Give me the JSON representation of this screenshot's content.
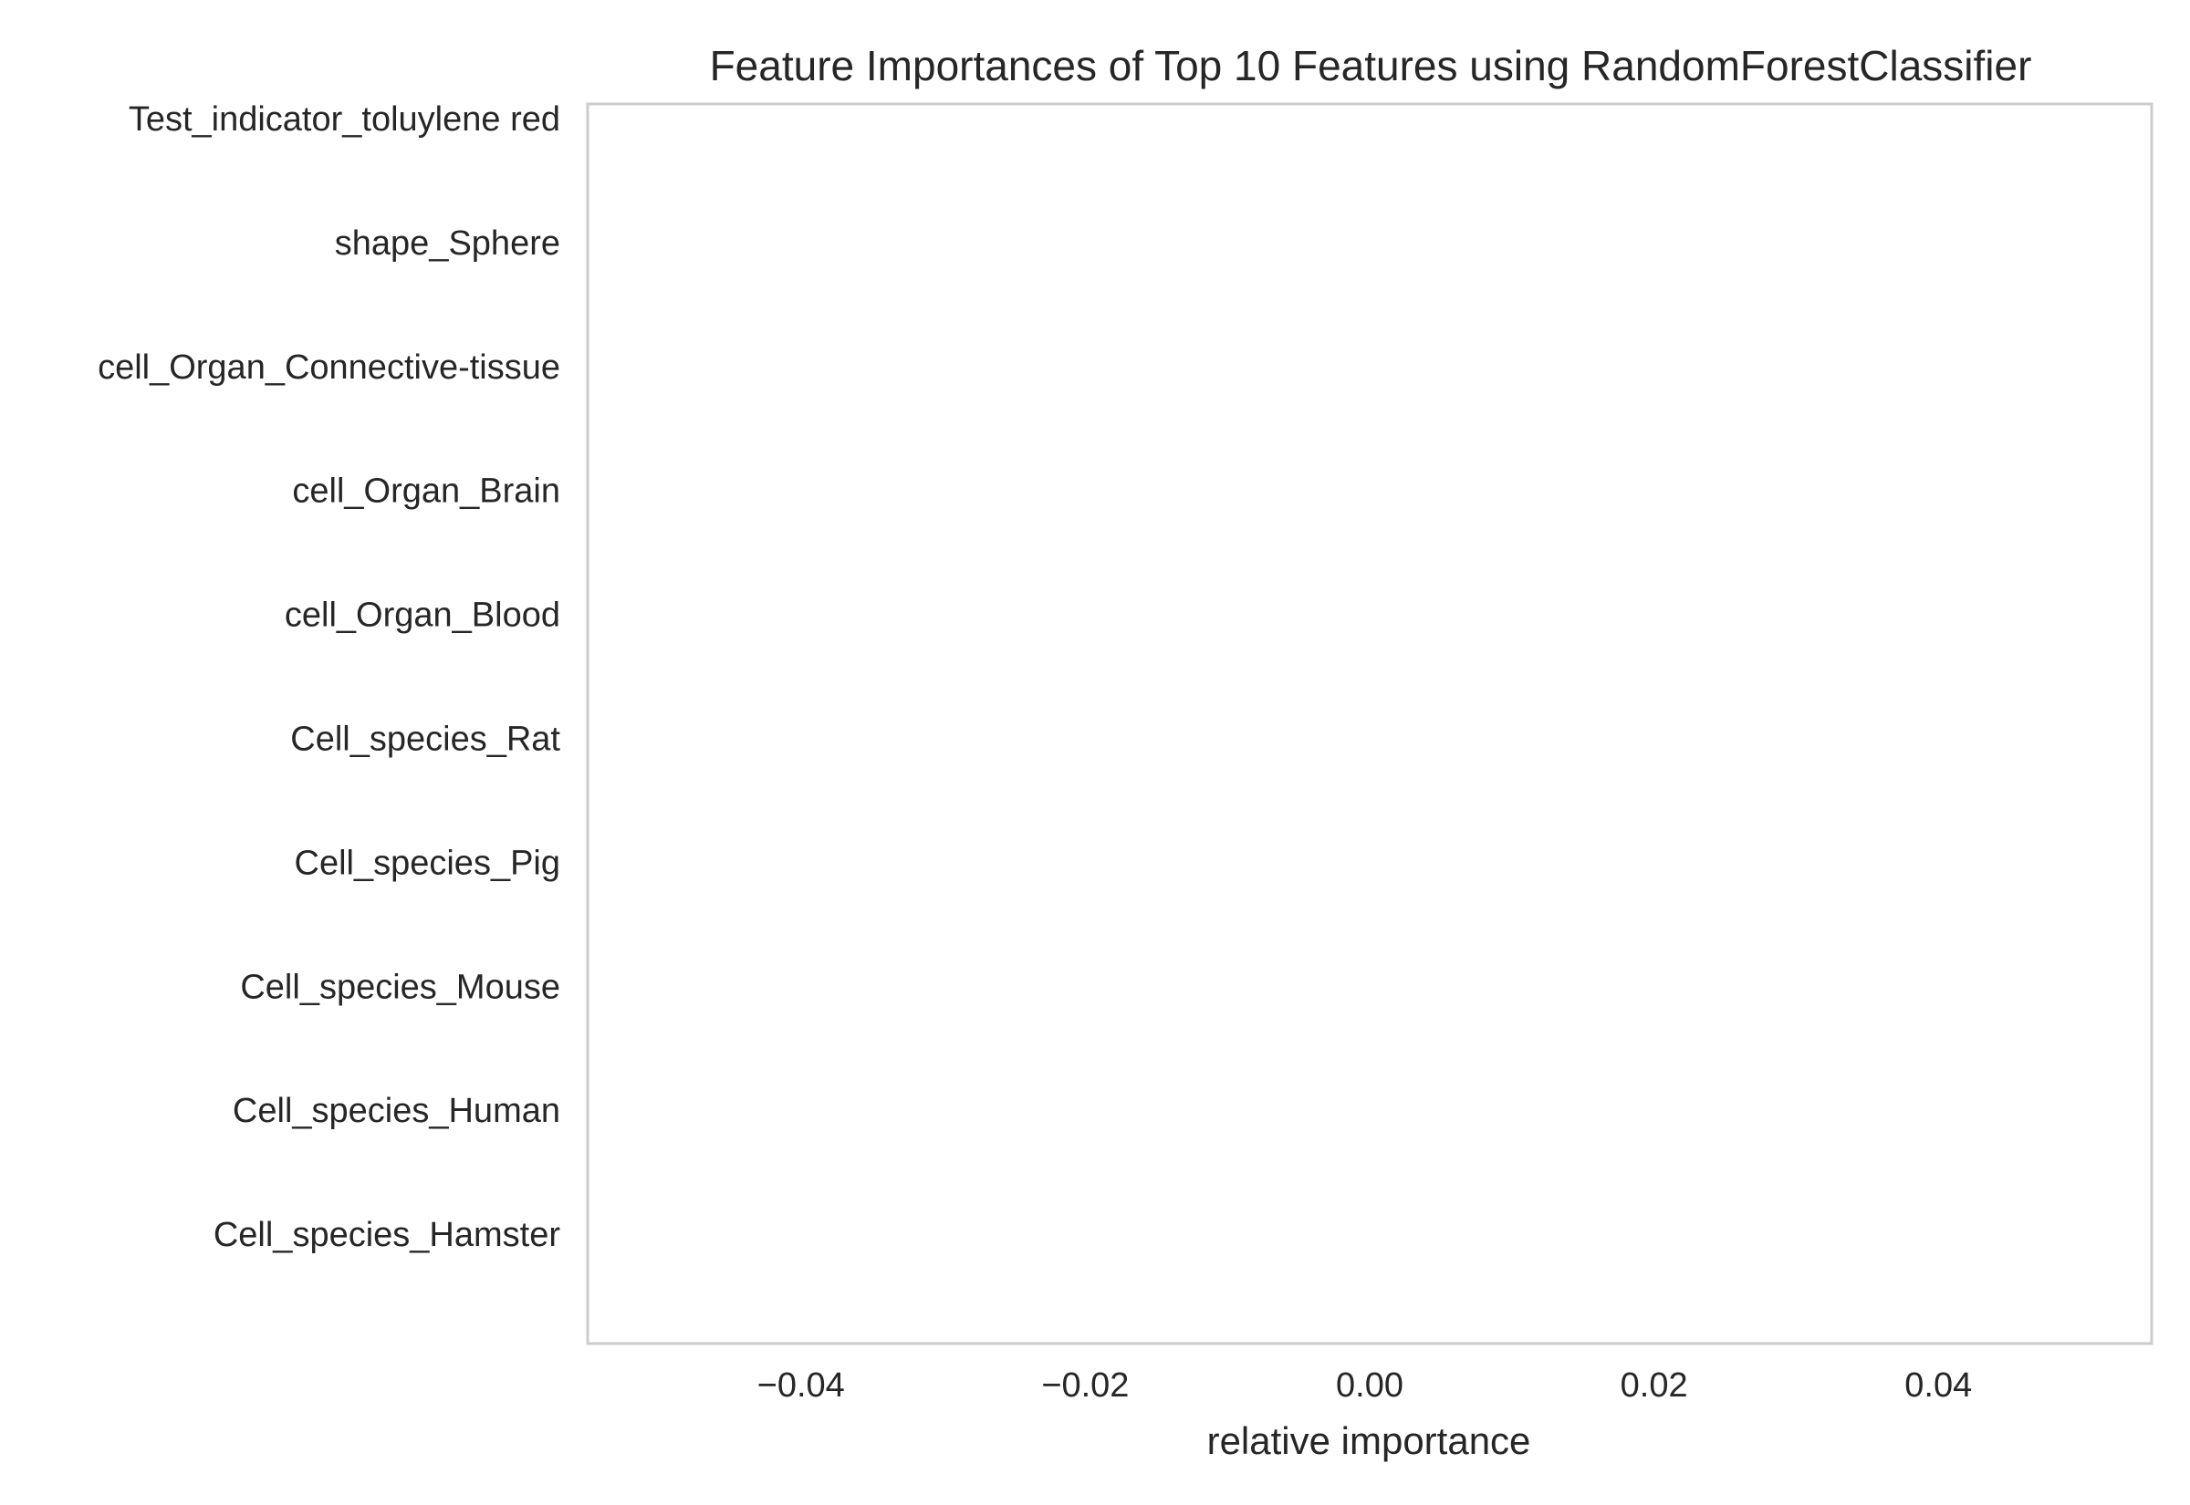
{
  "chart_data": {
    "type": "bar",
    "orientation": "horizontal",
    "title": "Feature Importances of Top 10 Features using RandomForestClassifier",
    "xlabel": "relative importance",
    "ylabel": "",
    "categories": [
      "Test_indicator_toluylene red",
      "shape_Sphere",
      "cell_Organ_Connective-tissue",
      "cell_Organ_Brain",
      "cell_Organ_Blood",
      "Cell_species_Rat",
      "Cell_species_Pig",
      "Cell_species_Mouse",
      "Cell_species_Human",
      "Cell_species_Hamster"
    ],
    "values": [
      0,
      0,
      0,
      0,
      0,
      0,
      0,
      0,
      0,
      0
    ],
    "xlim": [
      -0.055,
      0.055
    ],
    "x_ticks": [
      -0.04,
      -0.02,
      0.0,
      0.02,
      0.04
    ],
    "x_tick_labels": [
      "−0.04",
      "−0.02",
      "0.00",
      "0.02",
      "0.04"
    ],
    "grid": "vertical",
    "legend": "none",
    "colors": {
      "grid": "#cccccc",
      "frame": "#cccccc",
      "text": "#262626",
      "background": "#ffffff"
    }
  }
}
